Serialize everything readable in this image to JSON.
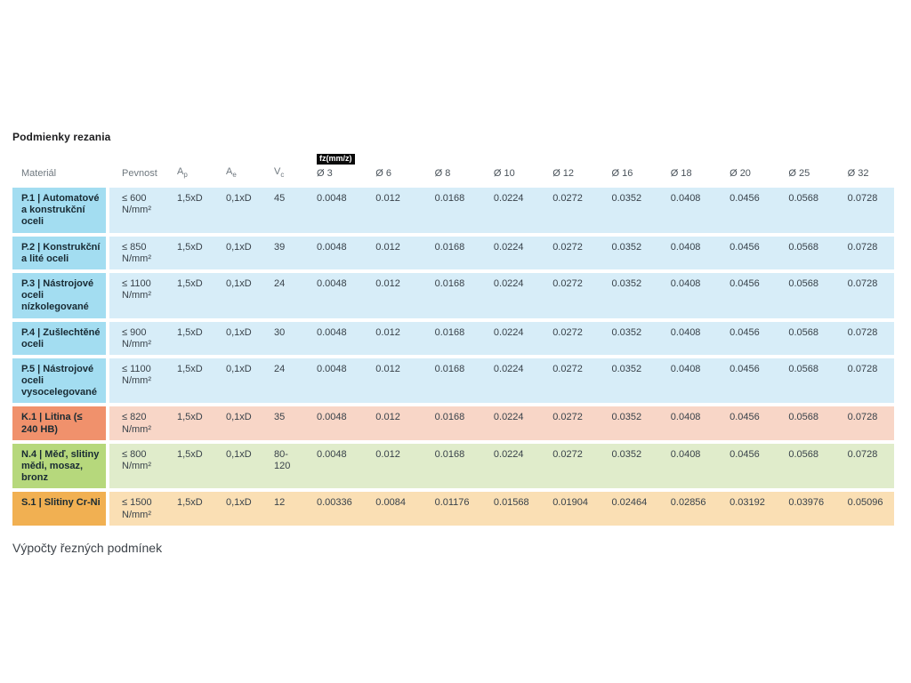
{
  "page": {
    "title": "Podmienky rezania",
    "footer_text": "Výpočty řezných podmínek"
  },
  "table": {
    "headers": {
      "material": "Materiál",
      "pevnost": "Pevnost",
      "ap": {
        "base": "A",
        "sub": "p"
      },
      "ae": {
        "base": "A",
        "sub": "e"
      },
      "vc": {
        "base": "V",
        "sub": "c"
      },
      "fz_badge": "fz(mm/z)",
      "diameters": [
        "Ø 3",
        "Ø 6",
        "Ø 8",
        "Ø 10",
        "Ø 12",
        "Ø 16",
        "Ø 18",
        "Ø 20",
        "Ø 25",
        "Ø 32"
      ]
    },
    "rows": [
      {
        "material": "P.1 | Automatové a konstrukční oceli",
        "pevnost": "≤ 600 N/mm²",
        "ap": "1,5xD",
        "ae": "0,1xD",
        "vc": "45",
        "fz": [
          "0.0048",
          "0.012",
          "0.0168",
          "0.0224",
          "0.0272",
          "0.0352",
          "0.0408",
          "0.0456",
          "0.0568",
          "0.0728"
        ],
        "colors": {
          "cell": "#a3ddf1",
          "body": "#d7edf8"
        }
      },
      {
        "material": "P.2 | Konstrukční a lité oceli",
        "pevnost": "≤ 850 N/mm²",
        "ap": "1,5xD",
        "ae": "0,1xD",
        "vc": "39",
        "fz": [
          "0.0048",
          "0.012",
          "0.0168",
          "0.0224",
          "0.0272",
          "0.0352",
          "0.0408",
          "0.0456",
          "0.0568",
          "0.0728"
        ],
        "colors": {
          "cell": "#a3ddf1",
          "body": "#d7edf8"
        }
      },
      {
        "material": "P.3 | Nástrojové oceli nízkolegované",
        "pevnost": "≤ 1100 N/mm²",
        "ap": "1,5xD",
        "ae": "0,1xD",
        "vc": "24",
        "fz": [
          "0.0048",
          "0.012",
          "0.0168",
          "0.0224",
          "0.0272",
          "0.0352",
          "0.0408",
          "0.0456",
          "0.0568",
          "0.0728"
        ],
        "colors": {
          "cell": "#a3ddf1",
          "body": "#d7edf8"
        }
      },
      {
        "material": "P.4 | Zušlechtěné oceli",
        "pevnost": "≤ 900 N/mm²",
        "ap": "1,5xD",
        "ae": "0,1xD",
        "vc": "30",
        "fz": [
          "0.0048",
          "0.012",
          "0.0168",
          "0.0224",
          "0.0272",
          "0.0352",
          "0.0408",
          "0.0456",
          "0.0568",
          "0.0728"
        ],
        "colors": {
          "cell": "#a3ddf1",
          "body": "#d7edf8"
        }
      },
      {
        "material": "P.5 | Nástrojové oceli vysocelegované",
        "pevnost": "≤ 1100 N/mm²",
        "ap": "1,5xD",
        "ae": "0,1xD",
        "vc": "24",
        "fz": [
          "0.0048",
          "0.012",
          "0.0168",
          "0.0224",
          "0.0272",
          "0.0352",
          "0.0408",
          "0.0456",
          "0.0568",
          "0.0728"
        ],
        "colors": {
          "cell": "#a3ddf1",
          "body": "#d7edf8"
        }
      },
      {
        "material": "K.1 | Litina (≤ 240 HB)",
        "pevnost": "≤ 820 N/mm²",
        "ap": "1,5xD",
        "ae": "0,1xD",
        "vc": "35",
        "fz": [
          "0.0048",
          "0.012",
          "0.0168",
          "0.0224",
          "0.0272",
          "0.0352",
          "0.0408",
          "0.0456",
          "0.0568",
          "0.0728"
        ],
        "colors": {
          "cell": "#f0916c",
          "body": "#f8d6c7"
        }
      },
      {
        "material": "N.4 | Měď, slitiny mědi, mosaz, bronz",
        "pevnost": "≤ 800 N/mm²",
        "ap": "1,5xD",
        "ae": "0,1xD",
        "vc": "80-120",
        "fz": [
          "0.0048",
          "0.012",
          "0.0168",
          "0.0224",
          "0.0272",
          "0.0352",
          "0.0408",
          "0.0456",
          "0.0568",
          "0.0728"
        ],
        "colors": {
          "cell": "#b6d87c",
          "body": "#e0eccb"
        }
      },
      {
        "material": "S.1 | Slitiny Cr-Ni",
        "pevnost": "≤ 1500 N/mm²",
        "ap": "1,5xD",
        "ae": "0,1xD",
        "vc": "12",
        "fz": [
          "0.00336",
          "0.0084",
          "0.01176",
          "0.01568",
          "0.01904",
          "0.02464",
          "0.02856",
          "0.03192",
          "0.03976",
          "0.05096"
        ],
        "colors": {
          "cell": "#f1b052",
          "body": "#fadfb4"
        }
      }
    ]
  }
}
